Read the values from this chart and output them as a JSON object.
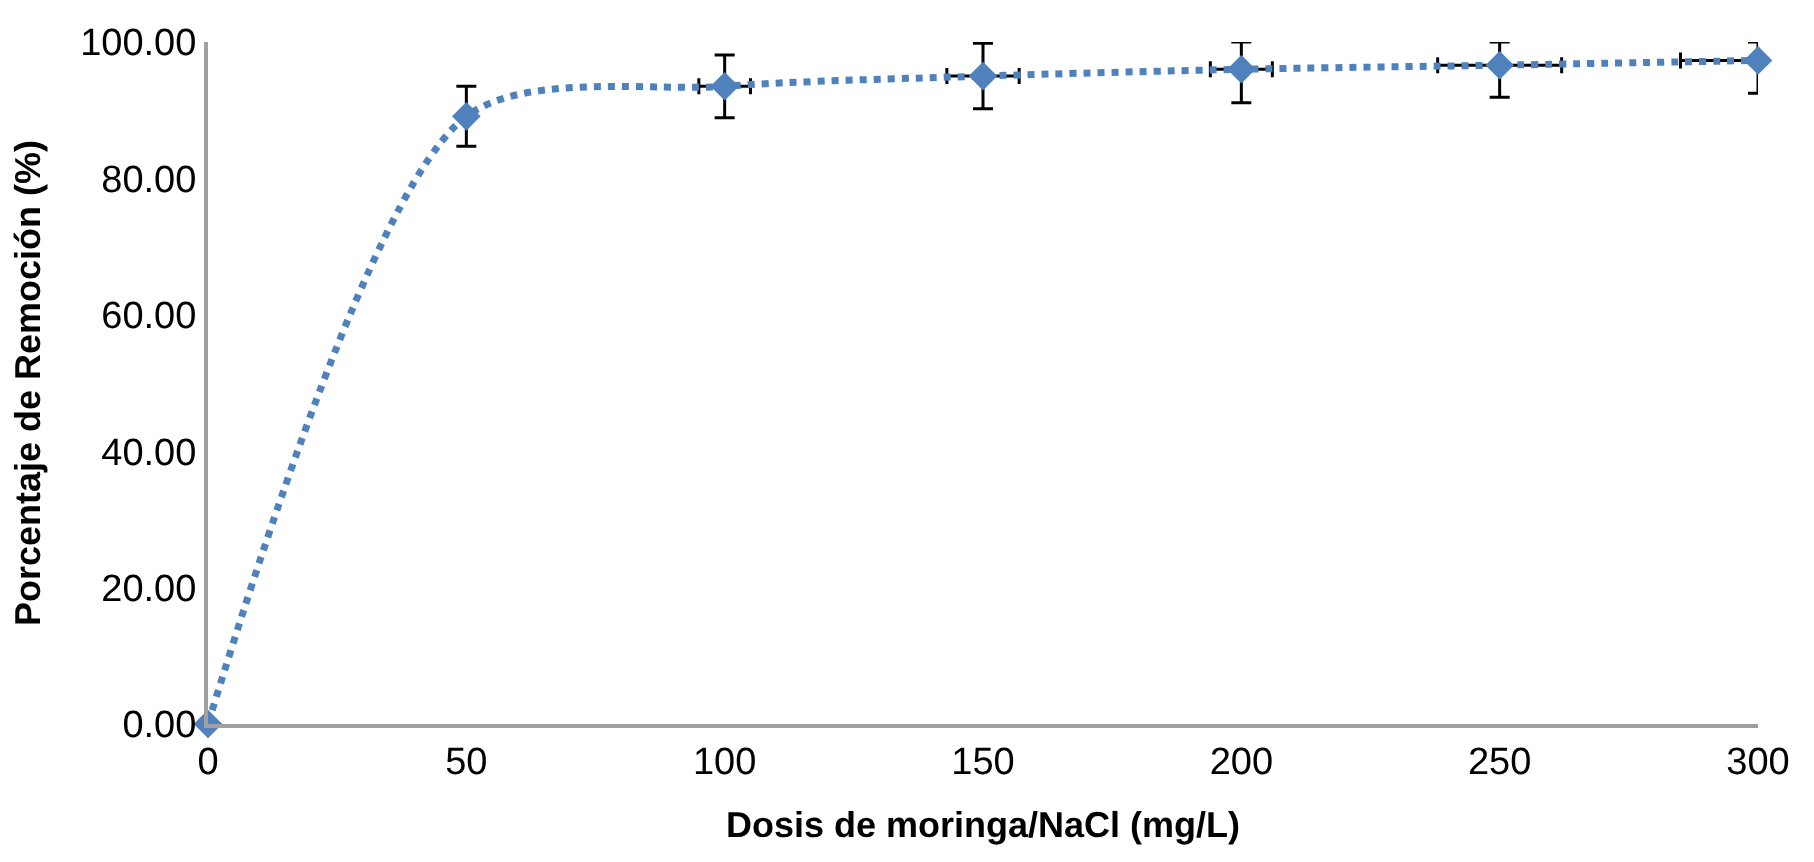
{
  "chart_data": {
    "type": "line",
    "xlabel": "Dosis de moringa/NaCl (mg/L)",
    "ylabel": "Porcentaje de Remoción (%)",
    "x": [
      0,
      50,
      100,
      150,
      200,
      250,
      300
    ],
    "series": [
      {
        "color": "#4f81bd",
        "values": [
          0,
          89.1,
          93.5,
          95.0,
          96.0,
          96.6,
          97.3
        ],
        "errors": [
          null,
          4.4,
          4.6,
          4.8,
          [
            91.1,
            100
          ],
          [
            91.9,
            100
          ],
          [
            92.5,
            100
          ]
        ],
        "xerrors": [
          null,
          null,
          5,
          7,
          6,
          12,
          [
            285,
            300
          ]
        ]
      }
    ],
    "xlim": [
      0,
      300
    ],
    "xticks": [
      0,
      50,
      100,
      150,
      200,
      250,
      300
    ],
    "ylim": [
      0,
      100
    ],
    "yticks": [
      {
        "value": 0,
        "label": "0.00"
      },
      {
        "value": 20,
        "label": "20.00"
      },
      {
        "value": 40,
        "label": "40.00"
      },
      {
        "value": 60,
        "label": "60.00"
      },
      {
        "value": 80,
        "label": "80.00"
      },
      {
        "value": 100,
        "label": "100.00"
      }
    ],
    "marker": "diamond",
    "line_style": "dotted"
  }
}
